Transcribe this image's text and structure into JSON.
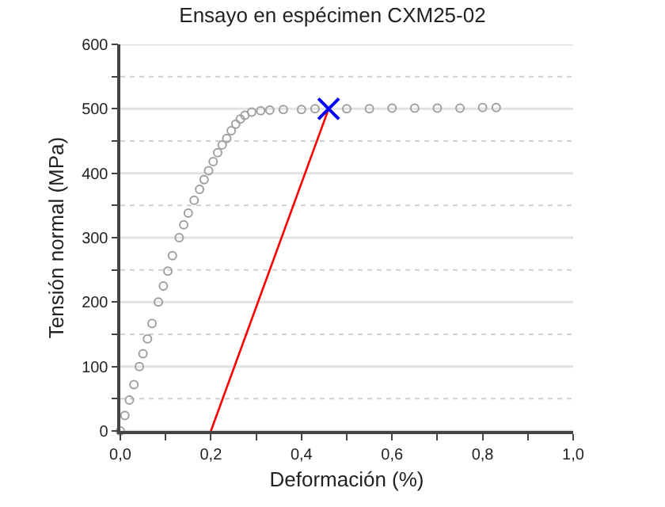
{
  "chart_data": {
    "type": "scatter",
    "title": "Ensayo en espécimen CXM25-02",
    "xlabel": "Deformación (%)",
    "ylabel": "Tensión normal (MPa)",
    "xlim": [
      0,
      1
    ],
    "ylim": [
      0,
      600
    ],
    "xticks": [
      {
        "value": 0,
        "label": "0,0"
      },
      {
        "value": 0.1,
        "label": null
      },
      {
        "value": 0.2,
        "label": "0,2"
      },
      {
        "value": 0.3,
        "label": null
      },
      {
        "value": 0.4,
        "label": "0,4"
      },
      {
        "value": 0.5,
        "label": null
      },
      {
        "value": 0.6,
        "label": "0,6"
      },
      {
        "value": 0.7,
        "label": null
      },
      {
        "value": 0.8,
        "label": "0,8"
      },
      {
        "value": 0.9,
        "label": null
      },
      {
        "value": 1,
        "label": "1,0"
      }
    ],
    "yticks": [
      0,
      {
        "value": 50,
        "label": null
      },
      100,
      {
        "value": 150,
        "label": null
      },
      200,
      {
        "value": 250,
        "label": null
      },
      300,
      {
        "value": 350,
        "label": null
      },
      400,
      {
        "value": 450,
        "label": null
      },
      500,
      {
        "value": 550,
        "label": null
      },
      600
    ],
    "grid": "y",
    "series": [
      {
        "marker": "circle",
        "color": "#a0a0a0",
        "x": [
          0,
          0.01,
          0.02,
          0.03,
          0.042,
          0.05,
          0.06,
          0.07,
          0.084,
          0.095,
          0.105,
          0.115,
          0.13,
          0.14,
          0.15,
          0.163,
          0.175,
          0.185,
          0.195,
          0.205,
          0.215,
          0.225,
          0.235,
          0.245,
          0.255,
          0.265,
          0.275,
          0.29,
          0.31,
          0.33,
          0.36,
          0.4,
          0.43,
          0.5,
          0.55,
          0.6,
          0.65,
          0.7,
          0.75,
          0.8,
          0.83
        ],
        "values": [
          0,
          24,
          48,
          72,
          100,
          120,
          143,
          167,
          200,
          225,
          248,
          272,
          300,
          320,
          338,
          358,
          375,
          390,
          404,
          418,
          432,
          444,
          454,
          466,
          476,
          484,
          490,
          495,
          497,
          498,
          499,
          499,
          500,
          500,
          500,
          501,
          501,
          501,
          501,
          502,
          502
        ]
      },
      {
        "type": "line",
        "marker": "none",
        "color": "#ff0000",
        "x": [
          0.2,
          0.46
        ],
        "values": [
          0,
          500
        ]
      },
      {
        "marker": "cross",
        "color": "#0000ff",
        "x": [
          0.46
        ],
        "values": [
          500
        ]
      }
    ]
  }
}
